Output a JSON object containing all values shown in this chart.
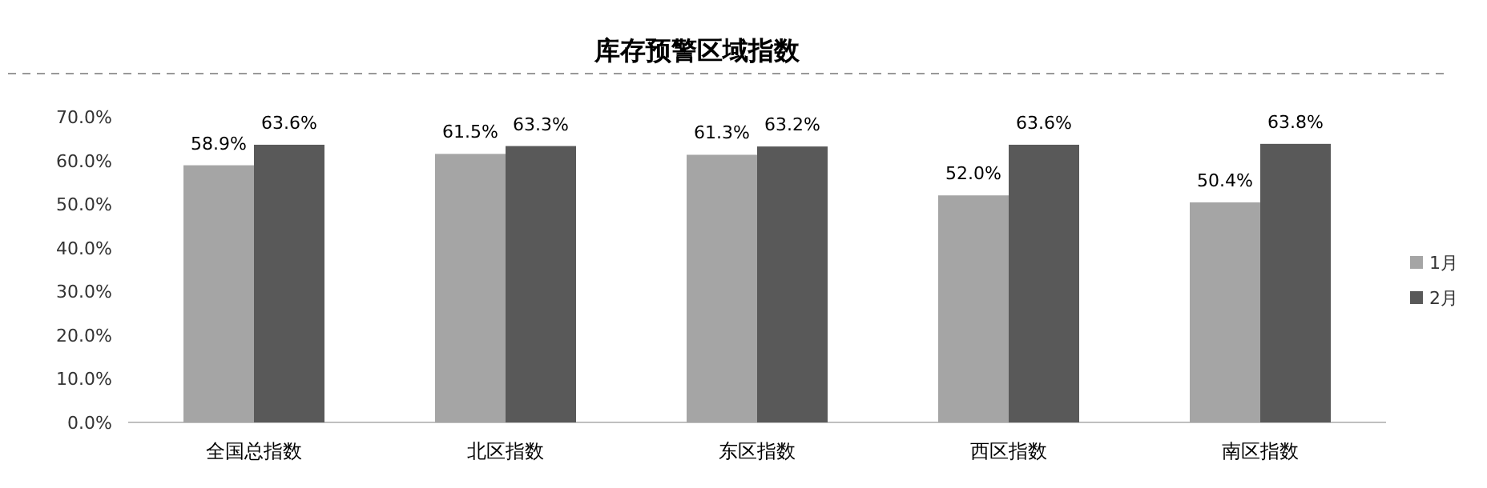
{
  "chart_data": {
    "type": "bar",
    "title": "库存预警区域指数",
    "categories": [
      "全国总指数",
      "北区指数",
      "东区指数",
      "西区指数",
      "南区指数"
    ],
    "series": [
      {
        "name": "1月",
        "color": "#a5a5a5",
        "values": [
          58.9,
          61.5,
          61.3,
          52.0,
          50.4
        ],
        "value_labels": [
          "58.9%",
          "61.5%",
          "61.3%",
          "52.0%",
          "50.4%"
        ]
      },
      {
        "name": "2月",
        "color": "#595959",
        "values": [
          63.6,
          63.3,
          63.2,
          63.6,
          63.8
        ],
        "value_labels": [
          "63.6%",
          "63.3%",
          "63.2%",
          "63.6%",
          "63.8%"
        ]
      }
    ],
    "ylim": [
      0,
      70
    ],
    "yticks": [
      {
        "value": 0,
        "label": "0.0%"
      },
      {
        "value": 10,
        "label": "10.0%"
      },
      {
        "value": 20,
        "label": "20.0%"
      },
      {
        "value": 30,
        "label": "30.0%"
      },
      {
        "value": 40,
        "label": "40.0%"
      },
      {
        "value": 50,
        "label": "50.0%"
      },
      {
        "value": 60,
        "label": "60.0%"
      },
      {
        "value": 70,
        "label": "70.0%"
      }
    ],
    "grid": false,
    "legend": "right"
  }
}
